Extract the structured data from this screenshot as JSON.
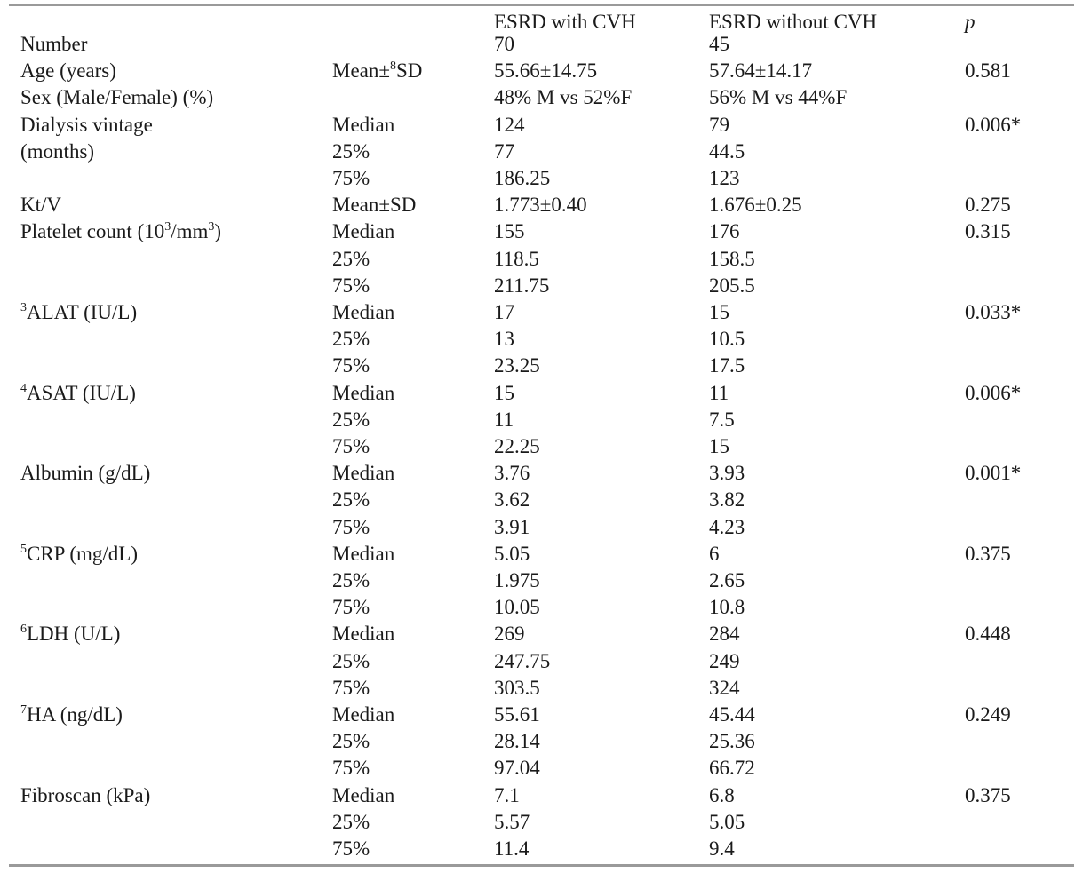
{
  "table": {
    "headers": {
      "col_with": "ESRD with CVH",
      "col_without": "ESRD without CVH",
      "col_p": "p"
    },
    "rows": [
      {
        "label": "Number",
        "stat": "",
        "with": "70",
        "without": "45",
        "p": ""
      },
      {
        "label": "Age (years)",
        "stat": "Mean±⁸SD",
        "with": "55.66±14.75",
        "without": "57.64±14.17",
        "p": "0.581"
      },
      {
        "label": "Sex (Male/Female) (%)",
        "stat": "",
        "with": "48% M vs 52%F",
        "without": "56% M vs 44%F",
        "p": ""
      },
      {
        "label": "Dialysis vintage",
        "stat": "Median",
        "with": "124",
        "without": "79",
        "p": "0.006*"
      },
      {
        "label": "(months)",
        "stat": "25%",
        "with": "77",
        "without": "44.5",
        "p": ""
      },
      {
        "label": "",
        "stat": "75%",
        "with": "186.25",
        "without": "123",
        "p": ""
      },
      {
        "label": "Kt/V",
        "stat": "Mean±SD",
        "with": "1.773±0.40",
        "without": "1.676±0.25",
        "p": "0.275"
      },
      {
        "label": "Platelet count (10³/mm³)",
        "stat": "Median",
        "with": "155",
        "without": "176",
        "p": "0.315"
      },
      {
        "label": "",
        "stat": "25%",
        "with": "118.5",
        "without": "158.5",
        "p": ""
      },
      {
        "label": "",
        "stat": "75%",
        "with": "211.75",
        "without": "205.5",
        "p": ""
      },
      {
        "label": "³ALAT (IU/L)",
        "stat": "Median",
        "with": "17",
        "without": "15",
        "p": "0.033*"
      },
      {
        "label": "",
        "stat": "25%",
        "with": "13",
        "without": "10.5",
        "p": ""
      },
      {
        "label": "",
        "stat": "75%",
        "with": "23.25",
        "without": "17.5",
        "p": ""
      },
      {
        "label": "⁴ASAT (IU/L)",
        "stat": "Median",
        "with": "15",
        "without": "11",
        "p": "0.006*"
      },
      {
        "label": "",
        "stat": "25%",
        "with": "11",
        "without": "7.5",
        "p": ""
      },
      {
        "label": "",
        "stat": "75%",
        "with": "22.25",
        "without": "15",
        "p": ""
      },
      {
        "label": "Albumin (g/dL)",
        "stat": "Median",
        "with": "3.76",
        "without": "3.93",
        "p": "0.001*"
      },
      {
        "label": "",
        "stat": "25%",
        "with": "3.62",
        "without": "3.82",
        "p": ""
      },
      {
        "label": "",
        "stat": "75%",
        "with": "3.91",
        "without": "4.23",
        "p": ""
      },
      {
        "label": "⁵CRP (mg/dL)",
        "stat": "Median",
        "with": "5.05",
        "without": "6",
        "p": "0.375"
      },
      {
        "label": "",
        "stat": "25%",
        "with": "1.975",
        "without": "2.65",
        "p": ""
      },
      {
        "label": "",
        "stat": "75%",
        "with": "10.05",
        "without": "10.8",
        "p": ""
      },
      {
        "label": "⁶LDH (U/L)",
        "stat": "Median",
        "with": "269",
        "without": "284",
        "p": "0.448"
      },
      {
        "label": "",
        "stat": "25%",
        "with": "247.75",
        "without": "249",
        "p": ""
      },
      {
        "label": "",
        "stat": "75%",
        "with": "303.5",
        "without": "324",
        "p": ""
      },
      {
        "label": "⁷HA (ng/dL)",
        "stat": "Median",
        "with": "55.61",
        "without": "45.44",
        "p": "0.249"
      },
      {
        "label": "",
        "stat": "25%",
        "with": "28.14",
        "without": "25.36",
        "p": ""
      },
      {
        "label": "",
        "stat": "75%",
        "with": "97.04",
        "without": "66.72",
        "p": ""
      },
      {
        "label": "Fibroscan (kPa)",
        "stat": "Median",
        "with": "7.1",
        "without": "6.8",
        "p": "0.375"
      },
      {
        "label": "",
        "stat": "25%",
        "with": "5.57",
        "without": "5.05",
        "p": ""
      },
      {
        "label": "",
        "stat": "75%",
        "with": "11.4",
        "without": "9.4",
        "p": ""
      }
    ]
  }
}
